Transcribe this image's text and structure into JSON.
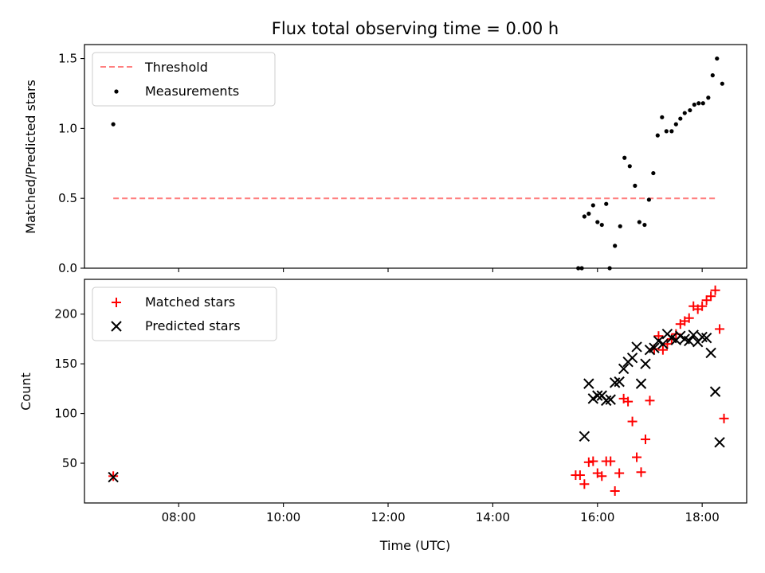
{
  "chart_data": [
    {
      "type": "scatter",
      "title": "Flux total observing time = 0.00 h",
      "xlabel": "",
      "ylabel": "Matched/Predicted stars",
      "xlim": [
        "06:12",
        "18:51"
      ],
      "ylim": [
        0,
        1.6
      ],
      "yticks": [
        0.0,
        0.5,
        1.0,
        1.5
      ],
      "ytick_labels": [
        "0.0",
        "0.5",
        "1.0",
        "1.5"
      ],
      "xticks": [
        "08:00",
        "10:00",
        "12:00",
        "14:00",
        "16:00",
        "18:00"
      ],
      "xtick_labels_visible": false,
      "grid": false,
      "legend_position": "top-left",
      "threshold": {
        "name": "Threshold",
        "value": 0.5,
        "x_start": "06:45",
        "x_end": "18:16",
        "color": "#ff7f7f",
        "style": "dashed"
      },
      "series": [
        {
          "name": "Measurements",
          "color": "#000000",
          "marker": "dot",
          "points": [
            [
              "06:45",
              1.03
            ],
            [
              "15:38",
              0.0
            ],
            [
              "15:42",
              0.0
            ],
            [
              "15:45",
              0.37
            ],
            [
              "15:50",
              0.39
            ],
            [
              "15:55",
              0.45
            ],
            [
              "16:00",
              0.33
            ],
            [
              "16:05",
              0.31
            ],
            [
              "16:10",
              0.46
            ],
            [
              "16:14",
              0.0
            ],
            [
              "16:20",
              0.16
            ],
            [
              "16:26",
              0.3
            ],
            [
              "16:31",
              0.79
            ],
            [
              "16:37",
              0.73
            ],
            [
              "16:43",
              0.59
            ],
            [
              "16:48",
              0.33
            ],
            [
              "16:54",
              0.31
            ],
            [
              "16:59",
              0.49
            ],
            [
              "17:04",
              0.68
            ],
            [
              "17:09",
              0.95
            ],
            [
              "17:14",
              1.08
            ],
            [
              "17:19",
              0.98
            ],
            [
              "17:25",
              0.98
            ],
            [
              "17:30",
              1.03
            ],
            [
              "17:35",
              1.07
            ],
            [
              "17:40",
              1.11
            ],
            [
              "17:46",
              1.13
            ],
            [
              "17:51",
              1.17
            ],
            [
              "17:56",
              1.18
            ],
            [
              "18:01",
              1.18
            ],
            [
              "18:07",
              1.22
            ],
            [
              "18:12",
              1.38
            ],
            [
              "18:17",
              1.5
            ],
            [
              "18:23",
              1.32
            ]
          ]
        }
      ]
    },
    {
      "type": "scatter",
      "title": "",
      "xlabel": "Time (UTC)",
      "ylabel": "Count",
      "xlim": [
        "06:12",
        "18:51"
      ],
      "ylim": [
        10,
        235
      ],
      "yticks": [
        50,
        100,
        150,
        200
      ],
      "ytick_labels": [
        "50",
        "100",
        "150",
        "200"
      ],
      "xticks": [
        "08:00",
        "10:00",
        "12:00",
        "14:00",
        "16:00",
        "18:00"
      ],
      "xtick_labels": [
        "08:00",
        "10:00",
        "12:00",
        "14:00",
        "16:00",
        "18:00"
      ],
      "grid": false,
      "legend_position": "top-left",
      "series": [
        {
          "name": "Matched stars",
          "color": "#ff0000",
          "marker": "plus",
          "points": [
            [
              "06:45",
              37
            ],
            [
              "15:35",
              38
            ],
            [
              "15:40",
              38
            ],
            [
              "15:45",
              29
            ],
            [
              "15:50",
              51
            ],
            [
              "15:55",
              52
            ],
            [
              "16:00",
              40
            ],
            [
              "16:05",
              37
            ],
            [
              "16:10",
              52
            ],
            [
              "16:15",
              52
            ],
            [
              "16:20",
              22
            ],
            [
              "16:25",
              40
            ],
            [
              "16:30",
              115
            ],
            [
              "16:35",
              112
            ],
            [
              "16:40",
              92
            ],
            [
              "16:45",
              56
            ],
            [
              "16:50",
              41
            ],
            [
              "16:55",
              74
            ],
            [
              "17:00",
              113
            ],
            [
              "17:05",
              165
            ],
            [
              "17:10",
              178
            ],
            [
              "17:15",
              164
            ],
            [
              "17:20",
              170
            ],
            [
              "17:25",
              175
            ],
            [
              "17:30",
              180
            ],
            [
              "17:35",
              190
            ],
            [
              "17:40",
              193
            ],
            [
              "17:45",
              196
            ],
            [
              "17:50",
              208
            ],
            [
              "17:55",
              205
            ],
            [
              "18:00",
              208
            ],
            [
              "18:05",
              214
            ],
            [
              "18:10",
              218
            ],
            [
              "18:15",
              224
            ],
            [
              "18:20",
              185
            ],
            [
              "18:25",
              95
            ]
          ]
        },
        {
          "name": "Predicted stars",
          "color": "#000000",
          "marker": "x",
          "points": [
            [
              "06:45",
              36
            ],
            [
              "15:45",
              77
            ],
            [
              "15:50",
              130
            ],
            [
              "15:55",
              115
            ],
            [
              "16:00",
              118
            ],
            [
              "16:05",
              118
            ],
            [
              "16:10",
              113
            ],
            [
              "16:15",
              114
            ],
            [
              "16:20",
              131
            ],
            [
              "16:25",
              132
            ],
            [
              "16:30",
              145
            ],
            [
              "16:35",
              152
            ],
            [
              "16:40",
              156
            ],
            [
              "16:45",
              167
            ],
            [
              "16:50",
              130
            ],
            [
              "16:55",
              150
            ],
            [
              "17:00",
              164
            ],
            [
              "17:05",
              166
            ],
            [
              "17:10",
              173
            ],
            [
              "17:15",
              170
            ],
            [
              "17:20",
              180
            ],
            [
              "17:25",
              176
            ],
            [
              "17:30",
              174
            ],
            [
              "17:35",
              178
            ],
            [
              "17:40",
              175
            ],
            [
              "17:45",
              173
            ],
            [
              "17:50",
              179
            ],
            [
              "17:55",
              172
            ],
            [
              "18:00",
              177
            ],
            [
              "18:05",
              176
            ],
            [
              "18:10",
              161
            ],
            [
              "18:15",
              122
            ],
            [
              "18:20",
              71
            ]
          ]
        }
      ]
    }
  ]
}
